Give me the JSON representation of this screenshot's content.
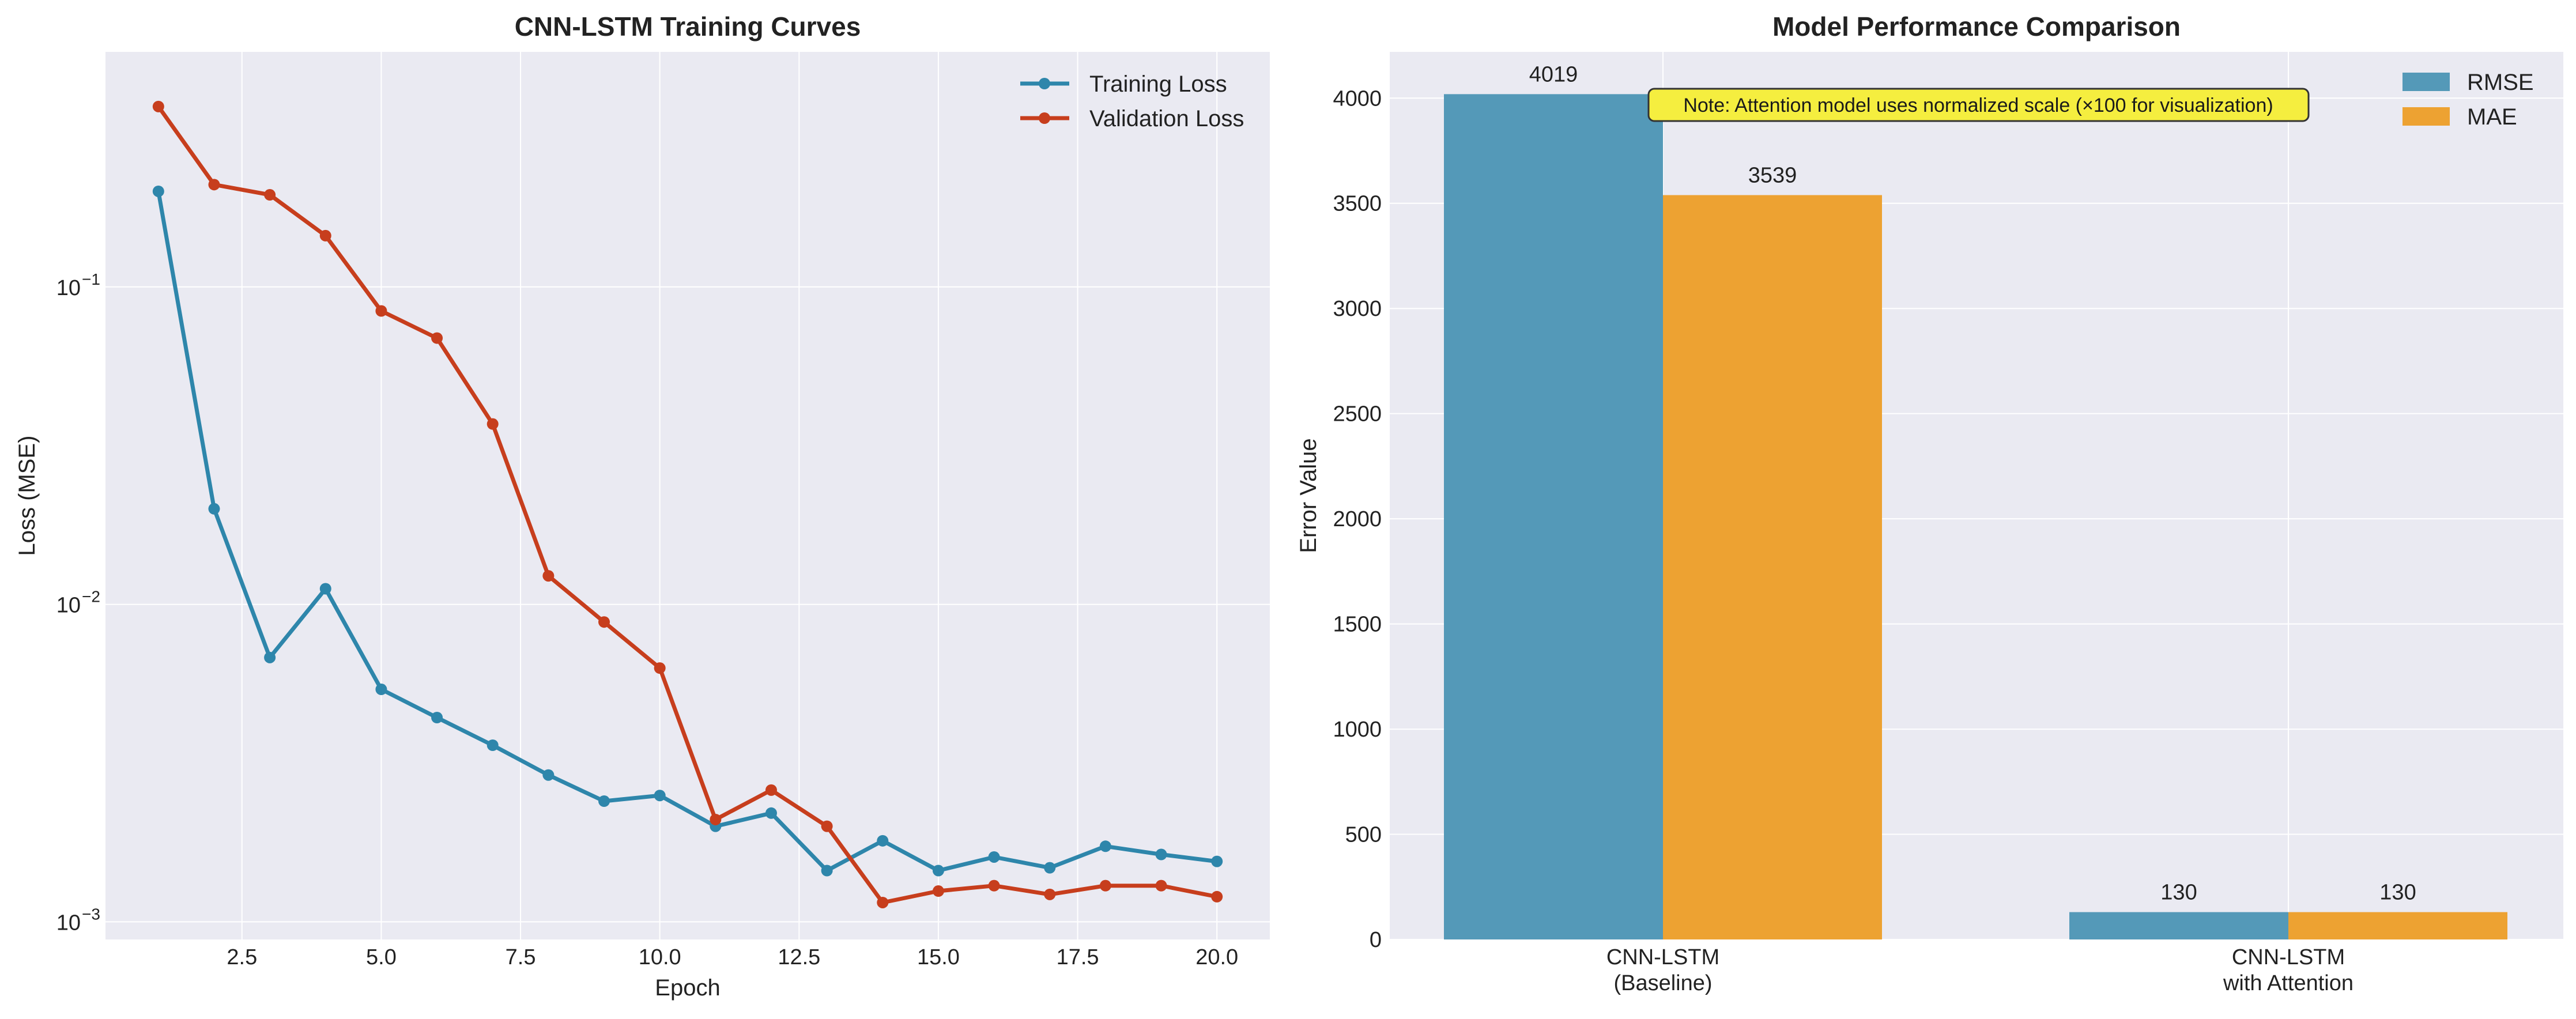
{
  "chart_data": [
    {
      "type": "line",
      "title": "CNN-LSTM Training Curves",
      "xlabel": "Epoch",
      "ylabel": "Loss (MSE)",
      "yscale": "log",
      "xlim": [
        0.05,
        20.95
      ],
      "ylim": [
        0.00088,
        0.55
      ],
      "x_ticks": [
        2.5,
        5.0,
        7.5,
        10.0,
        12.5,
        15.0,
        17.5,
        20.0
      ],
      "y_ticks": [
        {
          "value": 0.001,
          "base": "10",
          "exp": "−3"
        },
        {
          "value": 0.01,
          "base": "10",
          "exp": "−2"
        },
        {
          "value": 0.1,
          "base": "10",
          "exp": "−1"
        }
      ],
      "grid": true,
      "legend_position": "top-right",
      "x": [
        1,
        2,
        3,
        4,
        5,
        6,
        7,
        8,
        9,
        10,
        11,
        12,
        13,
        14,
        15,
        16,
        17,
        18,
        19,
        20
      ],
      "series": [
        {
          "name": "Training Loss",
          "color": "#2e86ab",
          "values": [
            0.2,
            0.02,
            0.0068,
            0.0112,
            0.0054,
            0.0044,
            0.0036,
            0.0029,
            0.0024,
            0.0025,
            0.002,
            0.0022,
            0.00145,
            0.0018,
            0.00145,
            0.0016,
            0.00148,
            0.00173,
            0.00163,
            0.00155
          ]
        },
        {
          "name": "Validation Loss",
          "color": "#c73e1d",
          "values": [
            0.37,
            0.21,
            0.195,
            0.145,
            0.084,
            0.069,
            0.037,
            0.0123,
            0.0088,
            0.0063,
            0.0021,
            0.0026,
            0.002,
            0.00115,
            0.00125,
            0.0013,
            0.00122,
            0.0013,
            0.0013,
            0.0012
          ]
        }
      ]
    },
    {
      "type": "bar",
      "title": "Model Performance Comparison",
      "xlabel": "",
      "ylabel": "Error Value",
      "ylim": [
        0,
        4220
      ],
      "y_ticks": [
        0,
        500,
        1000,
        1500,
        2000,
        2500,
        3000,
        3500,
        4000
      ],
      "categories": [
        {
          "line1": "CNN-LSTM",
          "line2": "(Baseline)"
        },
        {
          "line1": "CNN-LSTM",
          "line2": "with Attention"
        }
      ],
      "grid": true,
      "legend_position": "top-right",
      "series": [
        {
          "name": "RMSE",
          "color": "#5499b8",
          "values": [
            4019,
            130
          ],
          "labels": [
            "4019",
            "130"
          ]
        },
        {
          "name": "MAE",
          "color": "#eda232",
          "values": [
            3539,
            130
          ],
          "labels": [
            "3539",
            "130"
          ]
        }
      ],
      "annotation": "Note: Attention model uses normalized scale (×100 for visualization)",
      "annotation_color": "#f5ee3f"
    }
  ]
}
